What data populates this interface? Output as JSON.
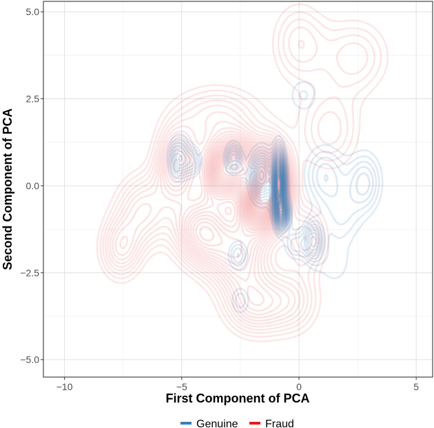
{
  "chart_data": {
    "type": "density-contour",
    "xlabel": "First Component of PCA",
    "ylabel": "Second Component of PCA",
    "xlim": [
      -10.9,
      5.7
    ],
    "ylim": [
      -5.5,
      5.3
    ],
    "x_ticks": [
      -10,
      -5,
      0,
      5
    ],
    "x_tick_labels": [
      "−10",
      "−5",
      "0",
      "5"
    ],
    "y_ticks": [
      -5.0,
      -2.5,
      0.0,
      2.5,
      5.0
    ],
    "y_tick_labels": [
      "−5.0",
      "−2.5",
      "0.0",
      "2.5",
      "5.0"
    ],
    "grid": true,
    "legend_position": "bottom",
    "series": [
      {
        "name": "Fraud",
        "color": "#e41a1c",
        "peaks": [
          {
            "x": -1.2,
            "y": 0.0,
            "sx": 0.55,
            "sy": 0.75,
            "w": 1.6
          },
          {
            "x": -2.5,
            "y": 0.6,
            "sx": 0.55,
            "sy": 0.55,
            "w": 1.1
          },
          {
            "x": -3.4,
            "y": 0.4,
            "sx": 0.5,
            "sy": 0.6,
            "w": 0.9
          },
          {
            "x": -1.9,
            "y": -0.6,
            "sx": 0.5,
            "sy": 0.5,
            "w": 0.8
          },
          {
            "x": -5.2,
            "y": 0.6,
            "sx": 0.6,
            "sy": 0.7,
            "w": 0.75
          },
          {
            "x": -4.2,
            "y": -1.3,
            "sx": 0.75,
            "sy": 0.65,
            "w": 0.75
          },
          {
            "x": -2.6,
            "y": -1.9,
            "sx": 0.9,
            "sy": 0.75,
            "w": 0.7
          },
          {
            "x": -6.6,
            "y": -0.7,
            "sx": 0.8,
            "sy": 0.7,
            "w": 0.45
          },
          {
            "x": -7.6,
            "y": -1.8,
            "sx": 0.6,
            "sy": 0.6,
            "w": 0.45
          },
          {
            "x": -1.9,
            "y": -3.4,
            "sx": 0.85,
            "sy": 0.6,
            "w": 0.5
          },
          {
            "x": -0.3,
            "y": -3.3,
            "sx": 0.8,
            "sy": 0.65,
            "w": 0.35
          },
          {
            "x": 0.0,
            "y": 4.1,
            "sx": 0.8,
            "sy": 0.8,
            "w": 0.3
          },
          {
            "x": 2.4,
            "y": 3.7,
            "sx": 1.0,
            "sy": 0.75,
            "w": 0.3
          },
          {
            "x": 1.3,
            "y": 1.6,
            "sx": 0.9,
            "sy": 0.8,
            "w": 0.3
          },
          {
            "x": -3.5,
            "y": 2.0,
            "sx": 1.3,
            "sy": 0.6,
            "w": 0.35
          },
          {
            "x": 0.3,
            "y": -1.5,
            "sx": 0.6,
            "sy": 0.6,
            "w": 0.4
          }
        ]
      },
      {
        "name": "Genuine",
        "color": "#377eb8",
        "peaks": [
          {
            "x": -0.85,
            "y": 0.05,
            "sx": 0.18,
            "sy": 0.6,
            "w": 2.2
          },
          {
            "x": -0.7,
            "y": -0.8,
            "sx": 0.2,
            "sy": 0.3,
            "w": 1.2
          },
          {
            "x": -1.6,
            "y": 0.3,
            "sx": 0.35,
            "sy": 0.5,
            "w": 0.9
          },
          {
            "x": -2.8,
            "y": 0.8,
            "sx": 0.25,
            "sy": 0.3,
            "w": 0.6
          },
          {
            "x": -5.1,
            "y": 0.8,
            "sx": 0.3,
            "sy": 0.4,
            "w": 0.7
          },
          {
            "x": -4.5,
            "y": 0.7,
            "sx": 0.25,
            "sy": 0.3,
            "w": 0.4
          },
          {
            "x": 0.6,
            "y": -1.6,
            "sx": 0.3,
            "sy": 0.4,
            "w": 0.7
          },
          {
            "x": 1.1,
            "y": 0.3,
            "sx": 0.6,
            "sy": 0.6,
            "w": 0.45
          },
          {
            "x": 2.8,
            "y": 0.1,
            "sx": 0.5,
            "sy": 0.6,
            "w": 0.5
          },
          {
            "x": 1.8,
            "y": -0.9,
            "sx": 0.6,
            "sy": 0.6,
            "w": 0.3
          },
          {
            "x": 0.2,
            "y": 2.6,
            "sx": 0.5,
            "sy": 0.4,
            "w": 0.25
          },
          {
            "x": 1.5,
            "y": -2.3,
            "sx": 0.6,
            "sy": 0.5,
            "w": 0.2
          },
          {
            "x": -2.6,
            "y": -2.0,
            "sx": 0.3,
            "sy": 0.3,
            "w": 0.4
          },
          {
            "x": -2.5,
            "y": -3.3,
            "sx": 0.3,
            "sy": 0.3,
            "w": 0.3
          },
          {
            "x": -0.2,
            "y": -1.7,
            "sx": 0.3,
            "sy": 0.3,
            "w": 0.35
          }
        ]
      }
    ]
  },
  "legend": {
    "items": [
      {
        "label": "Genuine",
        "color": "#377eb8"
      },
      {
        "label": "Fraud",
        "color": "#e41a1c"
      }
    ]
  }
}
